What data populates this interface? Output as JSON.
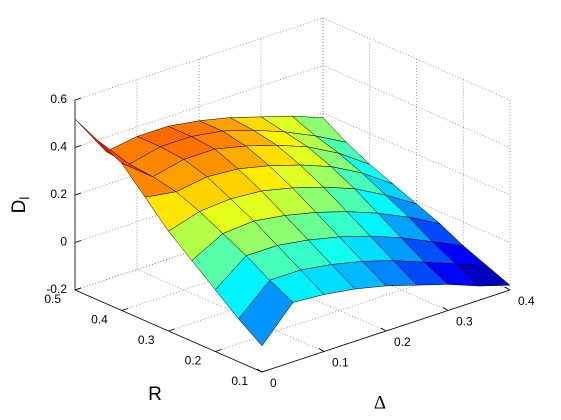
{
  "chart_data": {
    "type": "surface",
    "xlabel": "Δ",
    "ylabel": "R",
    "zlabel": "D",
    "zlabel_subscript": "l",
    "x": [
      0,
      0.05,
      0.1,
      0.15,
      0.2,
      0.25,
      0.3,
      0.35,
      0.4
    ],
    "y": [
      0.1,
      0.15,
      0.2,
      0.25,
      0.3,
      0.35,
      0.4,
      0.45,
      0.5
    ],
    "z": [
      [
        -0.09,
        0.05,
        0.04,
        0.02,
        -0.01,
        -0.05,
        -0.09,
        -0.14,
        -0.18
      ],
      [
        -0.02,
        0.1,
        0.1,
        0.08,
        0.05,
        0.01,
        -0.04,
        -0.09,
        -0.14
      ],
      [
        0.06,
        0.16,
        0.16,
        0.14,
        0.11,
        0.07,
        0.02,
        -0.04,
        -0.1
      ],
      [
        0.14,
        0.21,
        0.22,
        0.2,
        0.17,
        0.13,
        0.08,
        0.02,
        -0.05
      ],
      [
        0.22,
        0.26,
        0.27,
        0.26,
        0.23,
        0.19,
        0.14,
        0.07,
        -0.01
      ],
      [
        0.32,
        0.3,
        0.32,
        0.31,
        0.28,
        0.24,
        0.19,
        0.12,
        0.03
      ],
      [
        0.42,
        0.32,
        0.35,
        0.35,
        0.32,
        0.28,
        0.23,
        0.16,
        0.07
      ],
      [
        0.47,
        0.33,
        0.36,
        0.36,
        0.34,
        0.3,
        0.25,
        0.19,
        0.12
      ],
      [
        0.52,
        0.34,
        0.36,
        0.36,
        0.34,
        0.31,
        0.27,
        0.23,
        0.18
      ]
    ],
    "xlim": [
      0,
      0.4
    ],
    "ylim": [
      0.1,
      0.5
    ],
    "zlim": [
      -0.2,
      0.6
    ],
    "xticks": [
      0,
      0.1,
      0.2,
      0.3,
      0.4
    ],
    "yticks": [
      0.1,
      0.2,
      0.3,
      0.4,
      0.5
    ],
    "zticks": [
      -0.2,
      0,
      0.2,
      0.4,
      0.6
    ],
    "grid": true,
    "colormap": "jet"
  }
}
